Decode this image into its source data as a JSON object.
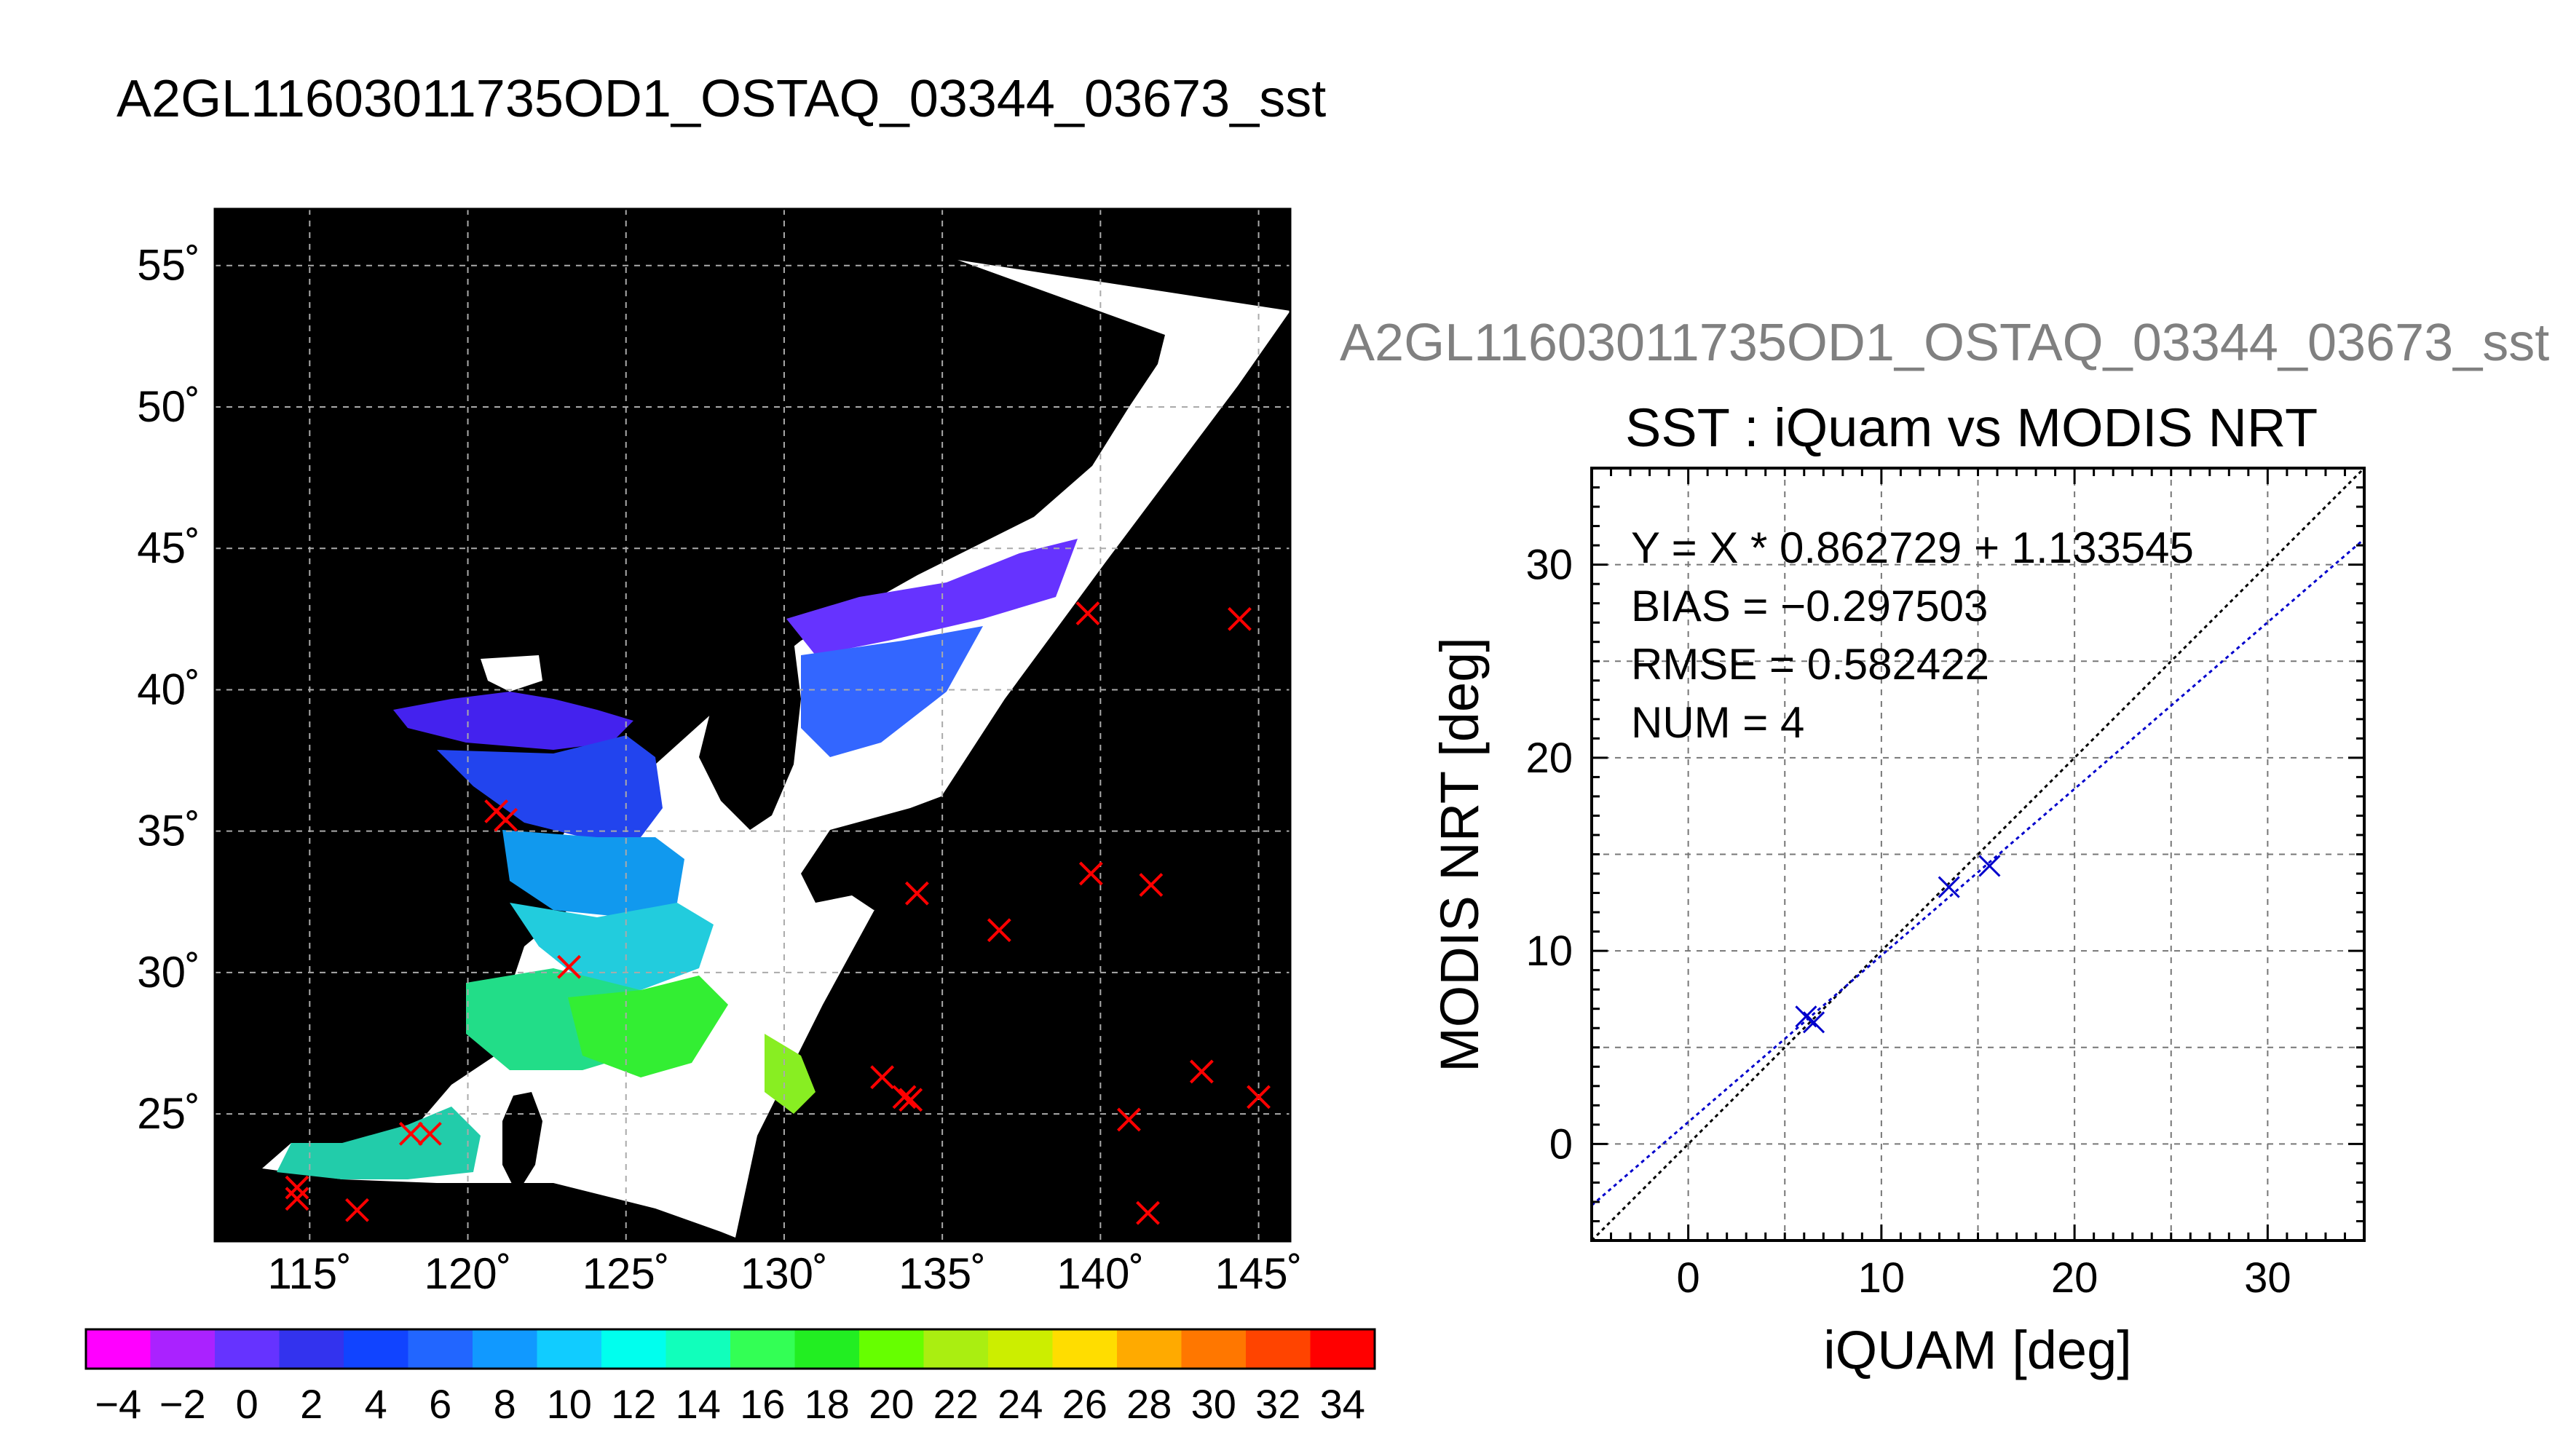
{
  "figure": {
    "title": "A2GL11603011735OD1_OSTAQ_03344_03673_sst",
    "subtitle": "A2GL11603011735OD1_OSTAQ_03344_03673_sst"
  },
  "colors": {
    "map_background": "#000000",
    "coast_land": "#ffffff",
    "marker_map": "#ff0000",
    "marker_scatter": "#0000cc",
    "fit_line": "#0000cc",
    "one_to_one": "#000000"
  },
  "chart_data": [
    {
      "type": "heatmap",
      "title": "",
      "xlabel": "",
      "ylabel": "",
      "xlim": [
        112,
        146
      ],
      "ylim": [
        20.5,
        57
      ],
      "x_ticks": [
        115,
        120,
        125,
        130,
        135,
        140,
        145
      ],
      "x_tick_labels": [
        "115˚",
        "120˚",
        "125˚",
        "130˚",
        "135˚",
        "140˚",
        "145˚"
      ],
      "y_ticks": [
        25,
        30,
        35,
        40,
        45,
        50,
        55
      ],
      "y_tick_labels": [
        "25˚",
        "30˚",
        "35˚",
        "40˚",
        "45˚",
        "50˚",
        "55˚"
      ],
      "grid": true,
      "colorbar": {
        "min": -5,
        "max": 35,
        "tick_values": [
          -4,
          -2,
          0,
          2,
          4,
          6,
          8,
          10,
          12,
          14,
          16,
          18,
          20,
          22,
          24,
          26,
          28,
          30,
          32,
          34
        ],
        "tick_labels": [
          "−4",
          "−2",
          "0",
          "2",
          "4",
          "6",
          "8",
          "10",
          "12",
          "14",
          "16",
          "18",
          "20",
          "22",
          "24",
          "26",
          "28",
          "30",
          "32",
          "34"
        ]
      },
      "markers": [
        {
          "lon": 120.9,
          "lat": 35.7
        },
        {
          "lon": 121.2,
          "lat": 35.4
        },
        {
          "lon": 123.2,
          "lat": 30.2
        },
        {
          "lon": 114.6,
          "lat": 22.4
        },
        {
          "lon": 114.6,
          "lat": 22.0
        },
        {
          "lon": 116.5,
          "lat": 21.6
        },
        {
          "lon": 118.2,
          "lat": 24.3
        },
        {
          "lon": 118.8,
          "lat": 24.3
        },
        {
          "lon": 134.2,
          "lat": 32.8
        },
        {
          "lon": 136.8,
          "lat": 31.5
        },
        {
          "lon": 139.7,
          "lat": 33.5
        },
        {
          "lon": 141.6,
          "lat": 33.1
        },
        {
          "lon": 139.6,
          "lat": 42.7
        },
        {
          "lon": 144.4,
          "lat": 42.5
        },
        {
          "lon": 133.1,
          "lat": 26.3
        },
        {
          "lon": 133.8,
          "lat": 25.6
        },
        {
          "lon": 134.0,
          "lat": 25.5
        },
        {
          "lon": 140.9,
          "lat": 24.8
        },
        {
          "lon": 141.5,
          "lat": 21.5
        },
        {
          "lon": 143.2,
          "lat": 26.5
        },
        {
          "lon": 145.0,
          "lat": 25.6
        }
      ]
    },
    {
      "type": "scatter",
      "title": "SST : iQuam vs MODIS NRT",
      "xlabel": "iQUAM [deg]",
      "ylabel": "MODIS NRT [deg]",
      "xlim": [
        -5,
        35
      ],
      "ylim": [
        -5,
        35
      ],
      "x_ticks": [
        0,
        10,
        20,
        30
      ],
      "x_tick_labels": [
        "0",
        "10",
        "20",
        "30"
      ],
      "y_ticks": [
        0,
        10,
        20,
        30
      ],
      "y_tick_labels": [
        "0",
        "10",
        "20",
        "30"
      ],
      "grid": true,
      "points": [
        {
          "x": 6.1,
          "y": 6.6
        },
        {
          "x": 6.5,
          "y": 6.3
        },
        {
          "x": 13.5,
          "y": 13.3
        },
        {
          "x": 15.6,
          "y": 14.4
        }
      ],
      "fit": {
        "slope": 0.862729,
        "intercept": 1.133545
      },
      "annotations": [
        "Y = X * 0.862729 + 1.133545",
        "BIAS = −0.297503",
        "RMSE = 0.582422",
        "NUM = 4"
      ]
    }
  ]
}
